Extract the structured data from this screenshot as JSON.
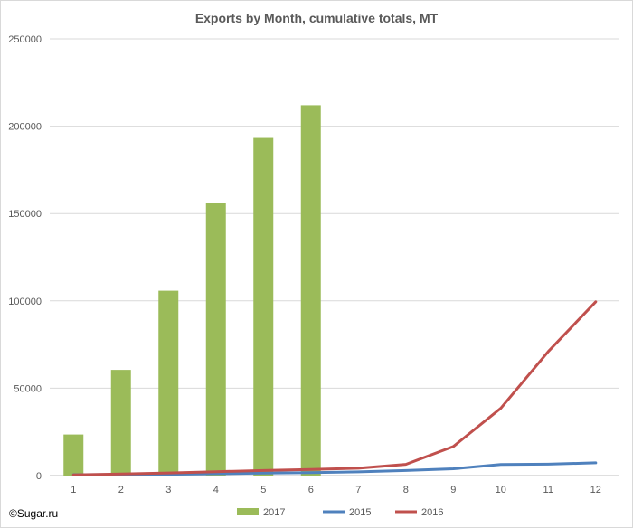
{
  "chart_data": {
    "type": "bar",
    "title": "Exports by Month, cumulative totals, MT",
    "xlabel": "",
    "ylabel": "",
    "categories": [
      "1",
      "2",
      "3",
      "4",
      "5",
      "6",
      "7",
      "8",
      "9",
      "10",
      "11",
      "12"
    ],
    "yticks": [
      0,
      50000,
      100000,
      150000,
      200000,
      250000
    ],
    "ylim": [
      0,
      250000
    ],
    "grid": "horizontal",
    "legend_position": "bottom",
    "series": [
      {
        "name": "2017",
        "kind": "bar",
        "color": "#9bbb59",
        "values": [
          23500,
          60500,
          105800,
          155900,
          193300,
          212000,
          null,
          null,
          null,
          null,
          null,
          null
        ]
      },
      {
        "name": "2015",
        "kind": "line",
        "color": "#4f81bd",
        "values": [
          500,
          600,
          700,
          1100,
          1400,
          1700,
          2100,
          2900,
          3900,
          6300,
          6500,
          7300
        ]
      },
      {
        "name": "2016",
        "kind": "line",
        "color": "#c0504d",
        "values": [
          400,
          900,
          1500,
          2200,
          2900,
          3500,
          4200,
          6400,
          16600,
          38500,
          71000,
          99500
        ]
      }
    ],
    "credit": "©Sugar.ru"
  }
}
